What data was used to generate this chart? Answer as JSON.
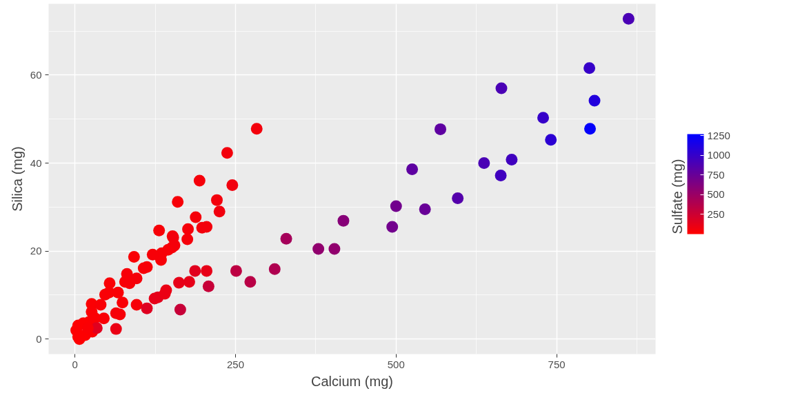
{
  "chart_data": {
    "type": "scatter",
    "xlabel": "Calcium (mg)",
    "ylabel": "Silica (mg)",
    "clabel": "Sulfate (mg)",
    "x": [
      283,
      237,
      194,
      245,
      160,
      221,
      225,
      188,
      205,
      198,
      131,
      176,
      152,
      153,
      175,
      135,
      151,
      134,
      155,
      145,
      121,
      92,
      112,
      107,
      81,
      96,
      78,
      54,
      85,
      53,
      67,
      47,
      74,
      96,
      26,
      40,
      64,
      70,
      45,
      26,
      31,
      22,
      5,
      13,
      2,
      5,
      16,
      27,
      34,
      20,
      7,
      187,
      205,
      208,
      251,
      273,
      311,
      162,
      178,
      142,
      129,
      140,
      124,
      164,
      112,
      64,
      329,
      379,
      404,
      418,
      494,
      500,
      545,
      525,
      569,
      596,
      637,
      663,
      680,
      664,
      729,
      741,
      802,
      801,
      809,
      862
    ],
    "values": [
      47.8,
      42.3,
      36,
      35,
      31.2,
      31.6,
      29,
      27.7,
      25.5,
      25.3,
      24.7,
      25,
      23.4,
      23.1,
      22.7,
      19.5,
      20.8,
      18,
      21.3,
      20.3,
      19.2,
      18.7,
      16.4,
      16.1,
      14.8,
      13.8,
      13,
      12.7,
      12.7,
      10.6,
      10.6,
      10.1,
      8.3,
      7.8,
      8,
      7.8,
      5.9,
      5.6,
      4.7,
      6.2,
      4.8,
      3.9,
      3.1,
      3.6,
      2,
      0.5,
      0.9,
      1.7,
      2.5,
      2.5,
      0,
      15.5,
      15.5,
      12,
      15.5,
      13,
      15.9,
      12.8,
      13,
      11.1,
      9.5,
      10.3,
      9.2,
      6.7,
      7,
      2.3,
      22.8,
      20.5,
      20.5,
      26.9,
      25.5,
      30.2,
      29.5,
      38.6,
      47.7,
      32,
      40,
      37.2,
      40.8,
      57,
      50.3,
      45.3,
      47.8,
      61.6,
      54.2,
      72.8
    ],
    "cvalues": [
      60,
      60,
      50,
      70,
      40,
      60,
      70,
      50,
      60,
      60,
      40,
      50,
      50,
      60,
      50,
      40,
      50,
      40,
      50,
      40,
      40,
      30,
      40,
      40,
      40,
      50,
      30,
      30,
      40,
      30,
      30,
      30,
      30,
      40,
      20,
      30,
      50,
      40,
      30,
      20,
      20,
      20,
      10,
      10,
      10,
      10,
      10,
      20,
      150,
      20,
      10,
      150,
      120,
      280,
      330,
      350,
      400,
      120,
      120,
      100,
      150,
      100,
      120,
      280,
      160,
      100,
      450,
      550,
      550,
      600,
      700,
      700,
      750,
      800,
      800,
      850,
      900,
      950,
      950,
      900,
      1000,
      1050,
      1250,
      1000,
      1100,
      900
    ],
    "xlim": [
      -41,
      904
    ],
    "ylim": [
      -3.4,
      76.2
    ],
    "xticks": [
      0,
      250,
      500,
      750
    ],
    "yticks": [
      0,
      20,
      40,
      60
    ],
    "clim": [
      0,
      1270
    ],
    "cticks": [
      250,
      500,
      750,
      1000,
      1250
    ],
    "grid": true,
    "marker": "circle"
  }
}
